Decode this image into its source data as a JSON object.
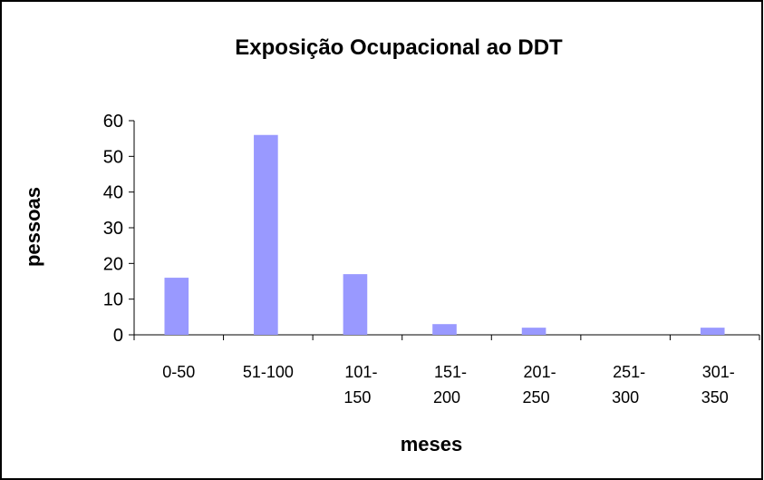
{
  "chart_data": {
    "type": "bar",
    "title": "Exposição Ocupacional ao DDT",
    "xlabel": "meses",
    "ylabel": "pessoas",
    "categories": [
      "0-50",
      "51-100",
      "101-150",
      "151-200",
      "201-250",
      "251-300",
      "301-350"
    ],
    "values": [
      16,
      56,
      17,
      3,
      2,
      0,
      2
    ],
    "color": "#9999ff",
    "ylim": [
      0,
      60
    ],
    "yticks": [
      0,
      10,
      20,
      30,
      40,
      50,
      60
    ],
    "grid": false
  }
}
